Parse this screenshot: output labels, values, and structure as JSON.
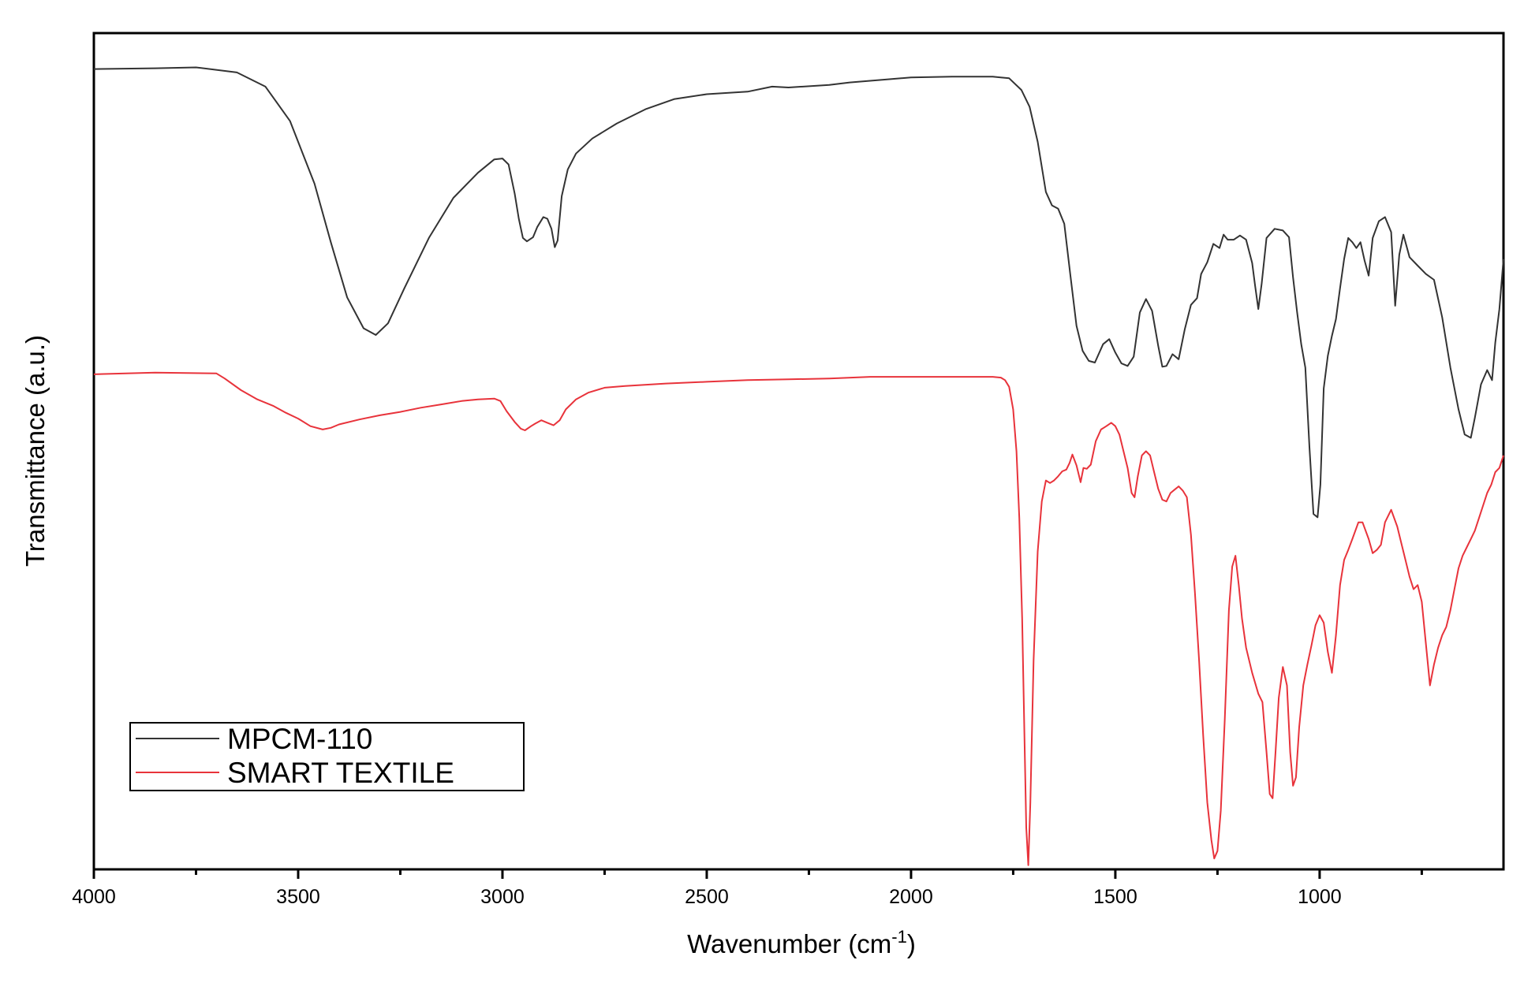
{
  "chart_data": {
    "type": "line",
    "xlabel": "Wavenumber (cm",
    "xlabel_superscript": "-1",
    "xlabel_suffix": ")",
    "ylabel": "Transmittance (a.u.)",
    "xlim": [
      4000,
      550
    ],
    "x_reversed": true,
    "ylim": [
      0,
      100
    ],
    "y_tick_labels": false,
    "grid": false,
    "legend_position": "bottom-left",
    "x_major_ticks": [
      4000,
      3500,
      3000,
      2500,
      2000,
      1500,
      1000
    ],
    "x_minor_ticks": [
      3750,
      3250,
      2750,
      2250,
      1750,
      1250,
      750
    ],
    "series": [
      {
        "name": "MPCM-110",
        "color": "#333333",
        "points": [
          [
            4000,
            95.7
          ],
          [
            3850,
            95.8
          ],
          [
            3750,
            95.9
          ],
          [
            3650,
            95.3
          ],
          [
            3580,
            93.6
          ],
          [
            3520,
            89.5
          ],
          [
            3460,
            82.0
          ],
          [
            3420,
            75.0
          ],
          [
            3380,
            68.4
          ],
          [
            3340,
            64.7
          ],
          [
            3310,
            63.9
          ],
          [
            3280,
            65.3
          ],
          [
            3240,
            69.5
          ],
          [
            3180,
            75.5
          ],
          [
            3120,
            80.3
          ],
          [
            3060,
            83.3
          ],
          [
            3020,
            84.9
          ],
          [
            3000,
            85.0
          ],
          [
            2985,
            84.3
          ],
          [
            2970,
            80.8
          ],
          [
            2960,
            77.8
          ],
          [
            2950,
            75.5
          ],
          [
            2940,
            75.1
          ],
          [
            2925,
            75.6
          ],
          [
            2915,
            76.8
          ],
          [
            2900,
            78.0
          ],
          [
            2890,
            77.8
          ],
          [
            2880,
            76.6
          ],
          [
            2872,
            74.4
          ],
          [
            2865,
            75.2
          ],
          [
            2855,
            80.5
          ],
          [
            2840,
            83.7
          ],
          [
            2820,
            85.6
          ],
          [
            2780,
            87.4
          ],
          [
            2720,
            89.2
          ],
          [
            2650,
            90.9
          ],
          [
            2580,
            92.1
          ],
          [
            2500,
            92.7
          ],
          [
            2400,
            93.0
          ],
          [
            2340,
            93.6
          ],
          [
            2300,
            93.5
          ],
          [
            2200,
            93.8
          ],
          [
            2150,
            94.1
          ],
          [
            2050,
            94.5
          ],
          [
            2000,
            94.7
          ],
          [
            1900,
            94.8
          ],
          [
            1800,
            94.8
          ],
          [
            1760,
            94.6
          ],
          [
            1730,
            93.2
          ],
          [
            1710,
            91.2
          ],
          [
            1690,
            87.0
          ],
          [
            1670,
            81.0
          ],
          [
            1655,
            79.4
          ],
          [
            1640,
            79.0
          ],
          [
            1625,
            77.2
          ],
          [
            1610,
            71.0
          ],
          [
            1595,
            65.0
          ],
          [
            1580,
            62.0
          ],
          [
            1565,
            60.8
          ],
          [
            1550,
            60.6
          ],
          [
            1530,
            62.8
          ],
          [
            1515,
            63.4
          ],
          [
            1500,
            61.8
          ],
          [
            1485,
            60.5
          ],
          [
            1470,
            60.2
          ],
          [
            1455,
            61.3
          ],
          [
            1440,
            66.6
          ],
          [
            1425,
            68.2
          ],
          [
            1410,
            66.8
          ],
          [
            1395,
            62.6
          ],
          [
            1385,
            60.1
          ],
          [
            1375,
            60.2
          ],
          [
            1360,
            61.6
          ],
          [
            1345,
            61.0
          ],
          [
            1330,
            64.6
          ],
          [
            1315,
            67.5
          ],
          [
            1300,
            68.3
          ],
          [
            1290,
            71.2
          ],
          [
            1275,
            72.6
          ],
          [
            1260,
            74.8
          ],
          [
            1245,
            74.3
          ],
          [
            1235,
            75.9
          ],
          [
            1225,
            75.3
          ],
          [
            1210,
            75.3
          ],
          [
            1195,
            75.8
          ],
          [
            1180,
            75.3
          ],
          [
            1165,
            72.5
          ],
          [
            1158,
            69.8
          ],
          [
            1150,
            67.0
          ],
          [
            1142,
            70.0
          ],
          [
            1130,
            75.5
          ],
          [
            1110,
            76.6
          ],
          [
            1090,
            76.4
          ],
          [
            1075,
            75.6
          ],
          [
            1065,
            70.8
          ],
          [
            1055,
            66.6
          ],
          [
            1045,
            62.8
          ],
          [
            1035,
            60.0
          ],
          [
            1025,
            50.5
          ],
          [
            1015,
            42.5
          ],
          [
            1005,
            42.1
          ],
          [
            998,
            46.0
          ],
          [
            990,
            57.5
          ],
          [
            980,
            61.4
          ],
          [
            970,
            63.8
          ],
          [
            960,
            65.8
          ],
          [
            950,
            69.5
          ],
          [
            940,
            73.0
          ],
          [
            930,
            75.5
          ],
          [
            920,
            75.0
          ],
          [
            910,
            74.3
          ],
          [
            900,
            75.0
          ],
          [
            890,
            72.8
          ],
          [
            880,
            71.0
          ],
          [
            870,
            75.5
          ],
          [
            855,
            77.5
          ],
          [
            840,
            78.0
          ],
          [
            825,
            76.2
          ],
          [
            815,
            67.4
          ],
          [
            805,
            73.5
          ],
          [
            795,
            75.9
          ],
          [
            780,
            73.2
          ],
          [
            760,
            72.2
          ],
          [
            740,
            71.2
          ],
          [
            720,
            70.5
          ],
          [
            700,
            66.0
          ],
          [
            680,
            60.0
          ],
          [
            660,
            55.0
          ],
          [
            645,
            52.0
          ],
          [
            630,
            51.6
          ],
          [
            620,
            54.0
          ],
          [
            605,
            58.0
          ],
          [
            590,
            59.7
          ],
          [
            578,
            58.5
          ],
          [
            570,
            63.0
          ],
          [
            560,
            67.0
          ],
          [
            550,
            73.0
          ]
        ]
      },
      {
        "name": "SMART TEXTILE",
        "color": "#e8333b",
        "points": [
          [
            4000,
            59.2
          ],
          [
            3850,
            59.4
          ],
          [
            3700,
            59.3
          ],
          [
            3680,
            58.7
          ],
          [
            3640,
            57.3
          ],
          [
            3600,
            56.2
          ],
          [
            3560,
            55.4
          ],
          [
            3530,
            54.6
          ],
          [
            3500,
            53.9
          ],
          [
            3470,
            53.0
          ],
          [
            3440,
            52.6
          ],
          [
            3420,
            52.8
          ],
          [
            3400,
            53.2
          ],
          [
            3350,
            53.8
          ],
          [
            3300,
            54.3
          ],
          [
            3250,
            54.7
          ],
          [
            3200,
            55.2
          ],
          [
            3150,
            55.6
          ],
          [
            3100,
            56.0
          ],
          [
            3060,
            56.2
          ],
          [
            3020,
            56.3
          ],
          [
            3005,
            56.0
          ],
          [
            2990,
            54.8
          ],
          [
            2970,
            53.5
          ],
          [
            2955,
            52.7
          ],
          [
            2945,
            52.5
          ],
          [
            2930,
            53.0
          ],
          [
            2920,
            53.3
          ],
          [
            2905,
            53.7
          ],
          [
            2890,
            53.4
          ],
          [
            2875,
            53.1
          ],
          [
            2860,
            53.7
          ],
          [
            2845,
            55.0
          ],
          [
            2820,
            56.2
          ],
          [
            2790,
            57.0
          ],
          [
            2750,
            57.6
          ],
          [
            2700,
            57.8
          ],
          [
            2600,
            58.1
          ],
          [
            2500,
            58.3
          ],
          [
            2400,
            58.5
          ],
          [
            2300,
            58.6
          ],
          [
            2200,
            58.7
          ],
          [
            2100,
            58.9
          ],
          [
            2000,
            58.9
          ],
          [
            1900,
            58.9
          ],
          [
            1800,
            58.9
          ],
          [
            1780,
            58.8
          ],
          [
            1770,
            58.5
          ],
          [
            1760,
            57.7
          ],
          [
            1750,
            55.0
          ],
          [
            1742,
            50.0
          ],
          [
            1735,
            42.0
          ],
          [
            1728,
            30.0
          ],
          [
            1722,
            15.0
          ],
          [
            1718,
            5.0
          ],
          [
            1713,
            0.5
          ],
          [
            1708,
            8.0
          ],
          [
            1700,
            25.0
          ],
          [
            1690,
            38.0
          ],
          [
            1680,
            44.0
          ],
          [
            1670,
            46.5
          ],
          [
            1660,
            46.2
          ],
          [
            1650,
            46.5
          ],
          [
            1640,
            47.0
          ],
          [
            1630,
            47.6
          ],
          [
            1620,
            47.8
          ],
          [
            1612,
            48.6
          ],
          [
            1605,
            49.6
          ],
          [
            1595,
            48.3
          ],
          [
            1585,
            46.3
          ],
          [
            1578,
            48.0
          ],
          [
            1570,
            47.9
          ],
          [
            1560,
            48.4
          ],
          [
            1548,
            51.2
          ],
          [
            1535,
            52.6
          ],
          [
            1522,
            53.0
          ],
          [
            1510,
            53.4
          ],
          [
            1500,
            53.0
          ],
          [
            1490,
            52.0
          ],
          [
            1480,
            50.0
          ],
          [
            1470,
            48.0
          ],
          [
            1460,
            45.0
          ],
          [
            1453,
            44.5
          ],
          [
            1445,
            47.0
          ],
          [
            1435,
            49.5
          ],
          [
            1425,
            50.0
          ],
          [
            1415,
            49.5
          ],
          [
            1405,
            47.5
          ],
          [
            1395,
            45.5
          ],
          [
            1385,
            44.2
          ],
          [
            1375,
            44.0
          ],
          [
            1365,
            45.0
          ],
          [
            1355,
            45.4
          ],
          [
            1345,
            45.8
          ],
          [
            1335,
            45.3
          ],
          [
            1325,
            44.5
          ],
          [
            1315,
            40.0
          ],
          [
            1305,
            33.0
          ],
          [
            1295,
            25.0
          ],
          [
            1285,
            16.0
          ],
          [
            1275,
            8.0
          ],
          [
            1265,
            3.5
          ],
          [
            1258,
            1.3
          ],
          [
            1250,
            2.2
          ],
          [
            1242,
            7.0
          ],
          [
            1232,
            18.0
          ],
          [
            1222,
            31.0
          ],
          [
            1214,
            36.2
          ],
          [
            1206,
            37.5
          ],
          [
            1198,
            34.0
          ],
          [
            1190,
            30.0
          ],
          [
            1180,
            26.5
          ],
          [
            1165,
            23.5
          ],
          [
            1150,
            21.0
          ],
          [
            1140,
            20.0
          ],
          [
            1130,
            14.0
          ],
          [
            1122,
            9.0
          ],
          [
            1115,
            8.5
          ],
          [
            1108,
            14.0
          ],
          [
            1100,
            20.5
          ],
          [
            1090,
            24.2
          ],
          [
            1080,
            22.0
          ],
          [
            1072,
            14.0
          ],
          [
            1065,
            10.0
          ],
          [
            1058,
            11.0
          ],
          [
            1050,
            17.0
          ],
          [
            1040,
            22.0
          ],
          [
            1030,
            24.5
          ],
          [
            1020,
            26.8
          ],
          [
            1010,
            29.2
          ],
          [
            1000,
            30.4
          ],
          [
            990,
            29.5
          ],
          [
            980,
            26.0
          ],
          [
            970,
            23.5
          ],
          [
            960,
            28.0
          ],
          [
            950,
            34.0
          ],
          [
            940,
            37.0
          ],
          [
            930,
            38.2
          ],
          [
            920,
            39.5
          ],
          [
            905,
            41.5
          ],
          [
            895,
            41.5
          ],
          [
            880,
            39.5
          ],
          [
            870,
            37.8
          ],
          [
            860,
            38.2
          ],
          [
            850,
            38.8
          ],
          [
            840,
            41.5
          ],
          [
            825,
            43.0
          ],
          [
            810,
            41.0
          ],
          [
            800,
            39.0
          ],
          [
            790,
            37.0
          ],
          [
            780,
            35.0
          ],
          [
            770,
            33.5
          ],
          [
            760,
            34.0
          ],
          [
            750,
            32.0
          ],
          [
            740,
            27.0
          ],
          [
            730,
            22.0
          ],
          [
            720,
            24.5
          ],
          [
            710,
            26.5
          ],
          [
            700,
            28.0
          ],
          [
            690,
            29.0
          ],
          [
            680,
            31.0
          ],
          [
            670,
            33.5
          ],
          [
            660,
            36.0
          ],
          [
            650,
            37.5
          ],
          [
            640,
            38.5
          ],
          [
            630,
            39.5
          ],
          [
            620,
            40.5
          ],
          [
            610,
            42.0
          ],
          [
            600,
            43.5
          ],
          [
            590,
            45.0
          ],
          [
            580,
            46.0
          ],
          [
            570,
            47.5
          ],
          [
            560,
            48.0
          ],
          [
            550,
            49.5
          ]
        ]
      }
    ]
  }
}
